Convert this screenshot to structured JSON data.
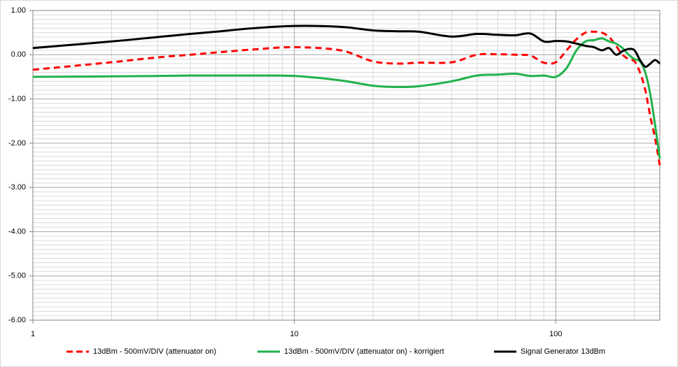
{
  "chart_data": {
    "type": "line",
    "log_x": true,
    "grid": true,
    "minor_grid": true,
    "legend": "bottom",
    "x": [
      1,
      2,
      3,
      4,
      5,
      7,
      10,
      15,
      20,
      25,
      30,
      40,
      50,
      60,
      70,
      80,
      90,
      100,
      110,
      120,
      130,
      140,
      150,
      160,
      170,
      180,
      190,
      200,
      210,
      220,
      230,
      240,
      250
    ],
    "xlim": [
      1,
      250
    ],
    "xticks": [
      1,
      10,
      100
    ],
    "ylim": [
      -6,
      1
    ],
    "yticks": [
      {
        "value": -6,
        "label": "-6.00"
      },
      {
        "value": -5,
        "label": "-5.00"
      },
      {
        "value": -4,
        "label": "-4.00"
      },
      {
        "value": -3,
        "label": "-3.00"
      },
      {
        "value": -2,
        "label": "-2.00"
      },
      {
        "value": -1,
        "label": "-1.00"
      },
      {
        "value": 0,
        "label": "0.00"
      },
      {
        "value": 1,
        "label": "1.00"
      }
    ],
    "series": [
      {
        "name": "13dBm - 500mV/DIV (attenuator on)",
        "color": "#ff0000",
        "dashed": true,
        "values": [
          -0.34,
          -0.17,
          -0.06,
          0.0,
          0.05,
          0.12,
          0.17,
          0.1,
          -0.15,
          -0.2,
          -0.18,
          -0.17,
          0.0,
          0.01,
          0.0,
          -0.02,
          -0.18,
          -0.17,
          0.1,
          0.35,
          0.5,
          0.52,
          0.5,
          0.4,
          0.2,
          0.0,
          -0.1,
          -0.15,
          -0.4,
          -0.8,
          -1.4,
          -1.9,
          -2.5
        ]
      },
      {
        "name": "13dBm - 500mV/DIV (attenuator on) - korrigiert",
        "color": "#21b24b",
        "dashed": false,
        "values": [
          -0.5,
          -0.49,
          -0.48,
          -0.47,
          -0.47,
          -0.47,
          -0.48,
          -0.58,
          -0.7,
          -0.73,
          -0.71,
          -0.6,
          -0.47,
          -0.45,
          -0.43,
          -0.48,
          -0.47,
          -0.5,
          -0.3,
          0.1,
          0.3,
          0.33,
          0.37,
          0.3,
          0.25,
          0.15,
          0.0,
          -0.1,
          -0.15,
          -0.4,
          -0.9,
          -1.6,
          -2.35
        ]
      },
      {
        "name": "Signal Generator 13dBm",
        "color": "#000000",
        "dashed": false,
        "values": [
          0.15,
          0.3,
          0.4,
          0.47,
          0.52,
          0.6,
          0.65,
          0.63,
          0.55,
          0.53,
          0.52,
          0.41,
          0.47,
          0.45,
          0.44,
          0.48,
          0.3,
          0.31,
          0.3,
          0.25,
          0.2,
          0.17,
          0.1,
          0.15,
          0.0,
          0.08,
          0.13,
          0.1,
          -0.12,
          -0.27,
          -0.2,
          -0.12,
          -0.2
        ]
      }
    ]
  }
}
